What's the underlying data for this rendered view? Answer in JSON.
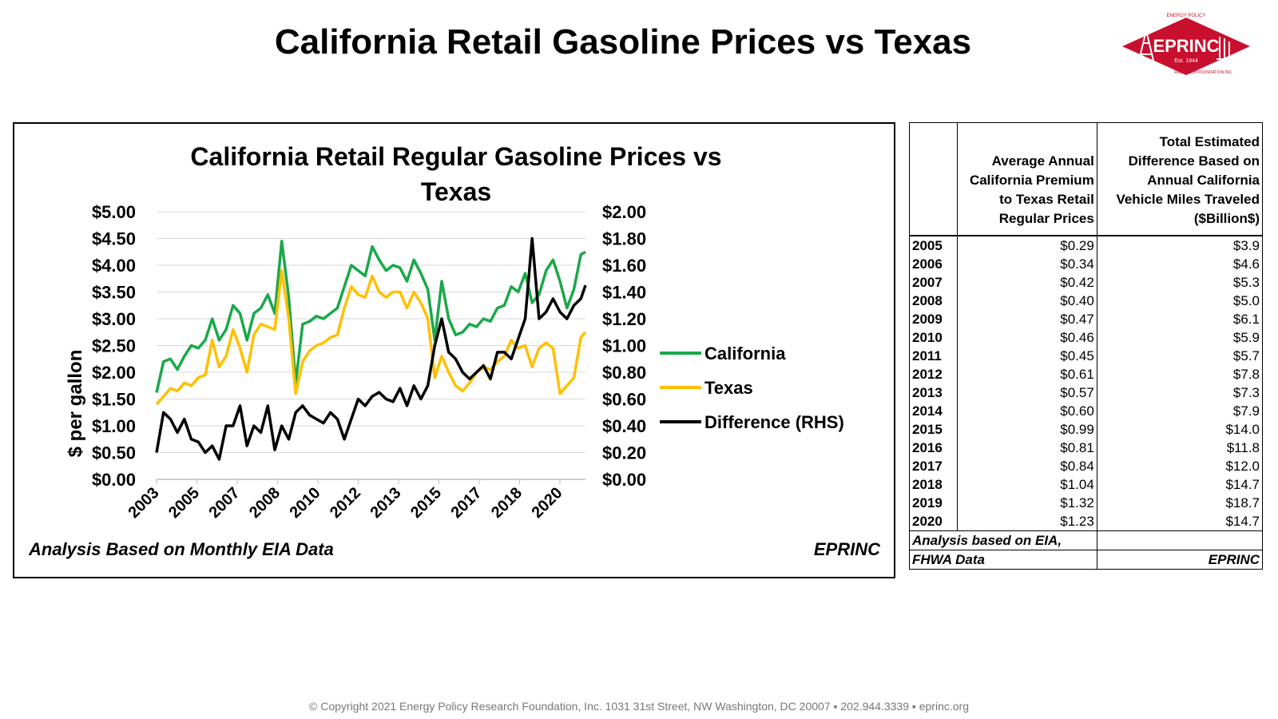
{
  "slide": {
    "title": "California Retail Gasoline Prices vs Texas",
    "footer": "© Copyright 2021 Energy Policy Research Foundation, Inc. 1031 31st Street, NW Washington, DC 20007 ▪ 202.944.3339 ▪ eprinc.org"
  },
  "logo": {
    "name": "EPRINC",
    "est": "Est. 1944",
    "arc_top": "ENERGY POLICY",
    "arc_bottom": "RESEARCH FOUNDATION INC.",
    "color": "#c8102e"
  },
  "chart_data": {
    "type": "line",
    "title": "California Retail Regular Gasoline Prices vs Texas",
    "ylabel": "$ per gallon",
    "xlabel": "",
    "x_tick_labels": [
      "2003",
      "2005",
      "2007",
      "2008",
      "2010",
      "2012",
      "2013",
      "2015",
      "2017",
      "2018",
      "2020"
    ],
    "y_left_ticks": [
      "$5.00",
      "$4.50",
      "$4.00",
      "$3.50",
      "$3.00",
      "$2.50",
      "$2.00",
      "$1.50",
      "$1.00",
      "$0.50",
      "$0.00"
    ],
    "y_right_ticks": [
      "$2.00",
      "$1.80",
      "$1.60",
      "$1.40",
      "$1.20",
      "$1.00",
      "$0.80",
      "$0.60",
      "$0.40",
      "$0.20",
      "$0.00"
    ],
    "ylim_left": [
      0,
      5
    ],
    "ylim_right": [
      0,
      2
    ],
    "xlim": [
      2003.0,
      2021.5
    ],
    "grid": true,
    "legend": "right",
    "source_note": "Analysis Based on Monthly EIA Data",
    "credit": "EPRINC",
    "series": [
      {
        "name": "California",
        "axis": "left",
        "color": "#1aa84a",
        "x": [
          2003.0,
          2003.3,
          2003.6,
          2003.9,
          2004.2,
          2004.5,
          2004.8,
          2005.1,
          2005.4,
          2005.7,
          2006.0,
          2006.3,
          2006.6,
          2006.9,
          2007.2,
          2007.5,
          2007.8,
          2008.1,
          2008.4,
          2008.7,
          2009.0,
          2009.3,
          2009.6,
          2009.9,
          2010.2,
          2010.5,
          2010.8,
          2011.1,
          2011.4,
          2011.7,
          2012.0,
          2012.3,
          2012.6,
          2012.9,
          2013.2,
          2013.5,
          2013.8,
          2014.1,
          2014.4,
          2014.7,
          2015.0,
          2015.3,
          2015.6,
          2015.9,
          2016.2,
          2016.5,
          2016.8,
          2017.1,
          2017.4,
          2017.7,
          2018.0,
          2018.3,
          2018.6,
          2018.9,
          2019.2,
          2019.5,
          2019.8,
          2020.1,
          2020.4,
          2020.7,
          2021.0,
          2021.3,
          2021.5
        ],
        "y": [
          1.62,
          2.2,
          2.25,
          2.05,
          2.3,
          2.5,
          2.45,
          2.6,
          3.0,
          2.6,
          2.8,
          3.25,
          3.1,
          2.6,
          3.1,
          3.2,
          3.45,
          3.1,
          4.45,
          3.4,
          1.8,
          2.9,
          2.95,
          3.05,
          3.0,
          3.1,
          3.2,
          3.6,
          4.0,
          3.9,
          3.8,
          4.35,
          4.1,
          3.9,
          4.0,
          3.95,
          3.7,
          4.1,
          3.85,
          3.55,
          2.6,
          3.7,
          3.0,
          2.7,
          2.75,
          2.9,
          2.85,
          3.0,
          2.95,
          3.2,
          3.25,
          3.6,
          3.5,
          3.85,
          3.3,
          3.45,
          3.9,
          4.1,
          3.7,
          3.2,
          3.55,
          4.2,
          4.25
        ]
      },
      {
        "name": "Texas",
        "axis": "left",
        "color": "#ffc000",
        "x": [
          2003.0,
          2003.3,
          2003.6,
          2003.9,
          2004.2,
          2004.5,
          2004.8,
          2005.1,
          2005.4,
          2005.7,
          2006.0,
          2006.3,
          2006.6,
          2006.9,
          2007.2,
          2007.5,
          2007.8,
          2008.1,
          2008.4,
          2008.7,
          2009.0,
          2009.3,
          2009.6,
          2009.9,
          2010.2,
          2010.5,
          2010.8,
          2011.1,
          2011.4,
          2011.7,
          2012.0,
          2012.3,
          2012.6,
          2012.9,
          2013.2,
          2013.5,
          2013.8,
          2014.1,
          2014.4,
          2014.7,
          2015.0,
          2015.3,
          2015.6,
          2015.9,
          2016.2,
          2016.5,
          2016.8,
          2017.1,
          2017.4,
          2017.7,
          2018.0,
          2018.3,
          2018.6,
          2018.9,
          2019.2,
          2019.5,
          2019.8,
          2020.1,
          2020.4,
          2020.7,
          2021.0,
          2021.3,
          2021.5
        ],
        "y": [
          1.4,
          1.55,
          1.7,
          1.65,
          1.8,
          1.75,
          1.9,
          1.95,
          2.6,
          2.1,
          2.3,
          2.8,
          2.45,
          2.0,
          2.7,
          2.9,
          2.85,
          2.8,
          3.9,
          3.0,
          1.6,
          2.2,
          2.4,
          2.5,
          2.55,
          2.65,
          2.7,
          3.2,
          3.6,
          3.45,
          3.4,
          3.8,
          3.5,
          3.4,
          3.5,
          3.5,
          3.2,
          3.5,
          3.3,
          3.0,
          1.9,
          2.3,
          2.0,
          1.75,
          1.65,
          1.8,
          2.0,
          2.1,
          2.05,
          2.2,
          2.3,
          2.6,
          2.45,
          2.5,
          2.1,
          2.45,
          2.55,
          2.45,
          1.6,
          1.75,
          1.9,
          2.65,
          2.75
        ]
      },
      {
        "name": "Difference (RHS)",
        "axis": "right",
        "color": "#000000",
        "x": [
          2003.0,
          2003.3,
          2003.6,
          2003.9,
          2004.2,
          2004.5,
          2004.8,
          2005.1,
          2005.4,
          2005.7,
          2006.0,
          2006.3,
          2006.6,
          2006.9,
          2007.2,
          2007.5,
          2007.8,
          2008.1,
          2008.4,
          2008.7,
          2009.0,
          2009.3,
          2009.6,
          2009.9,
          2010.2,
          2010.5,
          2010.8,
          2011.1,
          2011.4,
          2011.7,
          2012.0,
          2012.3,
          2012.6,
          2012.9,
          2013.2,
          2013.5,
          2013.8,
          2014.1,
          2014.4,
          2014.7,
          2015.0,
          2015.3,
          2015.6,
          2015.9,
          2016.2,
          2016.5,
          2016.8,
          2017.1,
          2017.4,
          2017.7,
          2018.0,
          2018.3,
          2018.6,
          2018.9,
          2019.2,
          2019.5,
          2019.8,
          2020.1,
          2020.4,
          2020.7,
          2021.0,
          2021.3,
          2021.5
        ],
        "y": [
          0.2,
          0.5,
          0.45,
          0.35,
          0.45,
          0.3,
          0.28,
          0.2,
          0.25,
          0.15,
          0.4,
          0.4,
          0.55,
          0.25,
          0.4,
          0.35,
          0.55,
          0.22,
          0.4,
          0.3,
          0.5,
          0.55,
          0.48,
          0.45,
          0.42,
          0.5,
          0.45,
          0.3,
          0.45,
          0.6,
          0.55,
          0.62,
          0.65,
          0.6,
          0.58,
          0.68,
          0.55,
          0.7,
          0.6,
          0.7,
          1.0,
          1.2,
          0.95,
          0.9,
          0.8,
          0.75,
          0.8,
          0.85,
          0.75,
          0.95,
          0.95,
          0.9,
          1.05,
          1.2,
          1.8,
          1.2,
          1.25,
          1.35,
          1.25,
          1.2,
          1.3,
          1.35,
          1.45
        ]
      }
    ]
  },
  "table": {
    "headers": [
      "",
      "Average Annual California Premium to Texas Retail Regular Prices",
      "Total Estimated Difference Based on Annual California Vehicle Miles Traveled ($Billion$)"
    ],
    "rows": [
      [
        "2005",
        "$0.29",
        "$3.9"
      ],
      [
        "2006",
        "$0.34",
        "$4.6"
      ],
      [
        "2007",
        "$0.42",
        "$5.3"
      ],
      [
        "2008",
        "$0.40",
        "$5.0"
      ],
      [
        "2009",
        "$0.47",
        "$6.1"
      ],
      [
        "2010",
        "$0.46",
        "$5.9"
      ],
      [
        "2011",
        "$0.45",
        "$5.7"
      ],
      [
        "2012",
        "$0.61",
        "$7.8"
      ],
      [
        "2013",
        "$0.57",
        "$7.3"
      ],
      [
        "2014",
        "$0.60",
        "$7.9"
      ],
      [
        "2015",
        "$0.99",
        "$14.0"
      ],
      [
        "2016",
        "$0.81",
        "$11.8"
      ],
      [
        "2017",
        "$0.84",
        "$12.0"
      ],
      [
        "2018",
        "$1.04",
        "$14.7"
      ],
      [
        "2019",
        "$1.32",
        "$18.7"
      ],
      [
        "2020",
        "$1.23",
        "$14.7"
      ]
    ],
    "note_line1": "Analysis based on EIA,",
    "note_line2": "FHWA Data",
    "credit": "EPRINC"
  }
}
